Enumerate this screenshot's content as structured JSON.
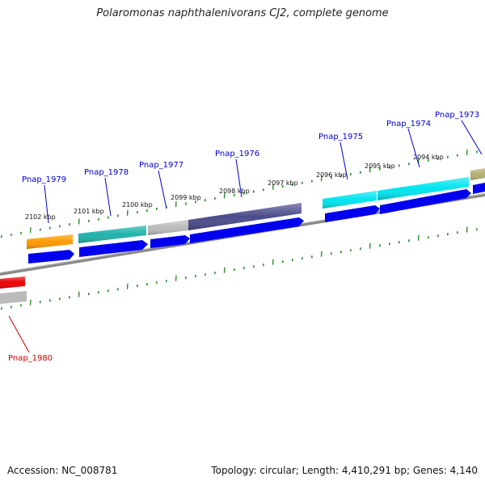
{
  "title": "Polaromonas naphthalenivorans CJ2, complete genome",
  "accession": "Accession: NC_008781",
  "summary": "Topology: circular; Length: 4,410,291 bp; Genes: 4,140",
  "kbp_labels": [
    "2102 kbp",
    "2101 kbp",
    "2100 kbp",
    "2099 kbp",
    "2098 kbp",
    "2097 kbp",
    "2096 kbp",
    "2095 kbp",
    "2094 kbp"
  ],
  "gene_labels": [
    {
      "text": "Pnap_1979",
      "color": "#0000cc"
    },
    {
      "text": "Pnap_1978",
      "color": "#0000cc"
    },
    {
      "text": "Pnap_1977",
      "color": "#0000cc"
    },
    {
      "text": "Pnap_1976",
      "color": "#0000cc"
    },
    {
      "text": "Pnap_1975",
      "color": "#0000cc"
    },
    {
      "text": "Pnap_1974",
      "color": "#0000cc"
    },
    {
      "text": "Pnap_1973",
      "color": "#0000cc"
    },
    {
      "text": "Pnap_1980",
      "color": "#cc0000"
    }
  ],
  "colors": {
    "backbone": "#888888",
    "tick": "#2e8b2e",
    "cds": "#0000ee",
    "orange": "#ff9900",
    "teal": "#20b2aa",
    "gray": "#bbbbbb",
    "indigo": "#4b4b8c",
    "cyan": "#00e5ee",
    "olive": "#b5b070",
    "red": "#ee0000"
  }
}
